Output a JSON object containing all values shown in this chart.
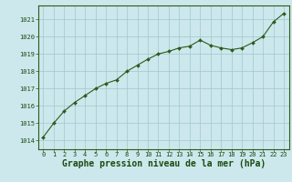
{
  "x": [
    0,
    1,
    2,
    3,
    4,
    5,
    6,
    7,
    8,
    9,
    10,
    11,
    12,
    13,
    14,
    15,
    16,
    17,
    18,
    19,
    20,
    21,
    22,
    23
  ],
  "y": [
    1014.2,
    1015.0,
    1015.7,
    1016.2,
    1016.6,
    1017.0,
    1017.3,
    1017.5,
    1018.0,
    1018.35,
    1018.7,
    1019.0,
    1019.15,
    1019.35,
    1019.45,
    1019.8,
    1019.5,
    1019.35,
    1019.25,
    1019.35,
    1019.65,
    1020.0,
    1020.85,
    1021.35
  ],
  "line_color": "#2d5a1b",
  "marker": "D",
  "marker_size": 2.0,
  "bg_color": "#cce8ec",
  "grid_color": "#9dc8ce",
  "title": "Graphe pression niveau de la mer (hPa)",
  "title_color": "#1a4a10",
  "title_fontsize": 7.0,
  "ylim": [
    1013.5,
    1021.8
  ],
  "xlim": [
    -0.5,
    23.5
  ],
  "yticks": [
    1014,
    1015,
    1016,
    1017,
    1018,
    1019,
    1020,
    1021
  ],
  "xticks": [
    0,
    1,
    2,
    3,
    4,
    5,
    6,
    7,
    8,
    9,
    10,
    11,
    12,
    13,
    14,
    15,
    16,
    17,
    18,
    19,
    20,
    21,
    22,
    23
  ],
  "tick_color": "#1a4a10",
  "tick_fontsize": 5.0,
  "axis_color": "#2d5a1b",
  "linewidth": 0.8
}
